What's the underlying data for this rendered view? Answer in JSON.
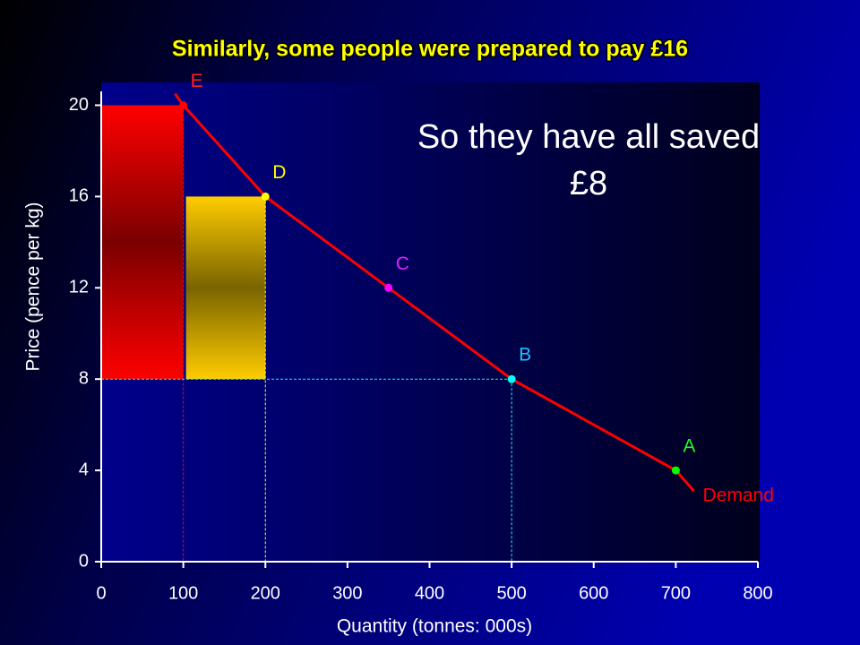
{
  "chart_data": {
    "type": "line",
    "title": "Similarly, some people were prepared to pay £16",
    "xlabel": "Quantity (tonnes: 000s)",
    "ylabel": "Price (pence per kg)",
    "xlim": [
      0,
      800
    ],
    "xticks": [
      0,
      100,
      200,
      300,
      400,
      500,
      600,
      700,
      800
    ],
    "ylim": [
      0,
      21
    ],
    "yticks": [
      0,
      4,
      8,
      12,
      16,
      20
    ],
    "series": [
      {
        "name": "Demand",
        "color": "#ff0000",
        "x": [
          90,
          100,
          200,
          350,
          500,
          700,
          722
        ],
        "values": [
          20.5,
          20,
          16,
          12,
          8,
          4,
          3.1
        ]
      }
    ],
    "points": [
      {
        "label": "E",
        "x": 100,
        "y": 20,
        "color": "#ff0000",
        "label_color": "#ff2020"
      },
      {
        "label": "D",
        "x": 200,
        "y": 16,
        "color": "#ffff00",
        "label_color": "#ffff00"
      },
      {
        "label": "C",
        "x": 350,
        "y": 12,
        "color": "#ff00ff",
        "label_color": "#e020ff"
      },
      {
        "label": "B",
        "x": 500,
        "y": 8,
        "color": "#00ffff",
        "label_color": "#20c0ff"
      },
      {
        "label": "A",
        "x": 700,
        "y": 4,
        "color": "#00ff00",
        "label_color": "#20ff20"
      }
    ],
    "bars": [
      {
        "x0": 0,
        "x1": 100,
        "y0": 8,
        "y1": 20,
        "colors": [
          "#ff0000",
          "#7a0000"
        ]
      },
      {
        "x0": 100,
        "x1": 200,
        "y0": 8,
        "y1": 16,
        "colors": [
          "#ffcc00",
          "#7a6400"
        ]
      }
    ],
    "annotation": [
      "So they have all saved",
      "£8"
    ]
  }
}
